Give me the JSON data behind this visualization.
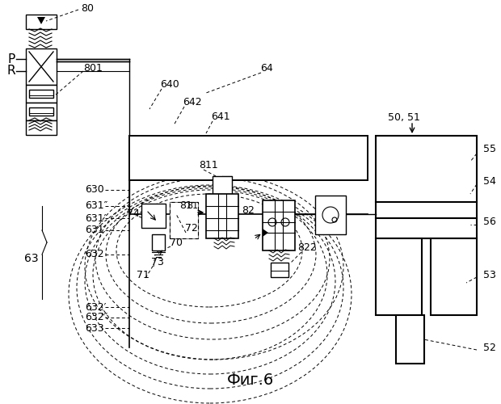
{
  "title": "Фиг.6",
  "bg_color": "#ffffff",
  "fig_width": 6.2,
  "fig_height": 5.0,
  "dpi": 100
}
